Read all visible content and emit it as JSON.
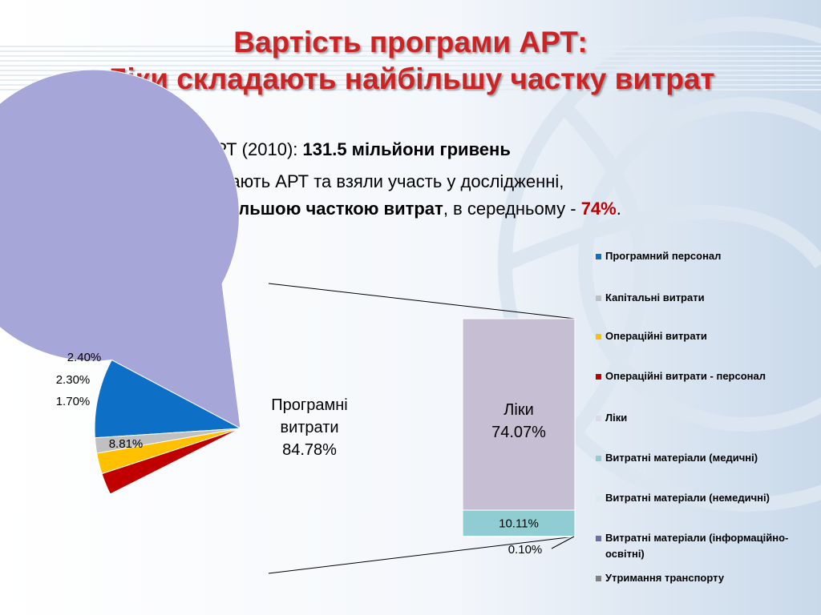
{
  "title": {
    "line1": "Вартість програми АРТ:",
    "line2": "Ліки складають найбільшу частку витрат"
  },
  "bullets": {
    "b1_text": "Загальні витрати на АРТ (2010): ",
    "b1_bold": "131.5 мільйони гривень",
    "b2_text": "Серед закладів, що надають АРТ та взяли участь у дослідженні,",
    "b2_bold": "витрати на ліки є найбільшою часткою витрат",
    "b2_mid": ", в середньому - ",
    "b2_red": "74%",
    "b2_end": "."
  },
  "colors": {
    "title": "#cc2424",
    "bullet_mark": "#c00000"
  },
  "chart_data": [
    {
      "type": "pie",
      "slices": [
        {
          "name": "Програмний персонал",
          "value": 8.81,
          "label": "8.81%",
          "color": "#0e6fc7"
        },
        {
          "name": "Капітальні витрати",
          "value": 1.7,
          "label": "1.70%",
          "color": "#c0c0c0"
        },
        {
          "name": "Операційні витрати",
          "value": 2.3,
          "label": "2.30%",
          "color": "#ffc000"
        },
        {
          "name": "Операційні витрати - персонал",
          "value": 2.4,
          "label": "2.40%",
          "color": "#c00000"
        },
        {
          "name": "Програмні витрати",
          "value": 84.78,
          "label": "84.78%",
          "color": "#a6a6d8"
        }
      ],
      "center_label": [
        "Програмні",
        "витрати",
        "84.78%"
      ]
    },
    {
      "type": "bar",
      "stacked": true,
      "segments": [
        {
          "name": "Ліки",
          "value": 74.07,
          "label": "74.07%",
          "color": "#c6bfd4"
        },
        {
          "name": "Витратні матеріали (медичні)",
          "value": 10.11,
          "label": "10.11%",
          "color": "#8fcdd2"
        },
        {
          "name": "Витратні матеріали (інформаційно-освітні)",
          "value": 0.1,
          "label": "0.10%",
          "color": "#6b6fa8"
        }
      ],
      "center_label": [
        "Ліки",
        "74.07%"
      ]
    }
  ],
  "legend": [
    {
      "label": "Програмний персонал",
      "color": "#0e6fc7"
    },
    {
      "label": "Капітальні витрати",
      "color": "#c0c0c0"
    },
    {
      "label": "Операційні витрати",
      "color": "#ffc000"
    },
    {
      "label": "Операційні витрати - персонал",
      "color": "#c00000"
    },
    {
      "label": "Ліки",
      "color": "#e0d8ea"
    },
    {
      "label": "Витратні матеріали (медичні)",
      "color": "#8fcdd2"
    },
    {
      "label": "Витратні матеріали (немедичні)",
      "color": "#d6ecee"
    },
    {
      "label": "Витратні матеріали (інформаційно-освітні)",
      "color": "#6b6fa8"
    },
    {
      "label": "Утримання транспорту",
      "color": "#808080"
    }
  ]
}
